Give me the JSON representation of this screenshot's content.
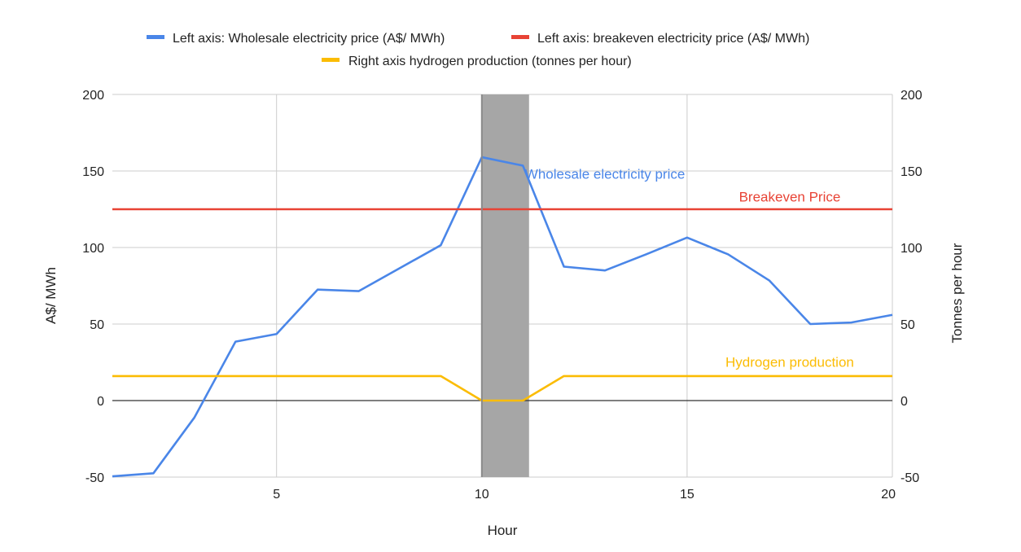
{
  "chart_data": {
    "type": "line",
    "title": "",
    "xlabel": "Hour",
    "ylabel_left": "A$/ MWh",
    "ylabel_right": "Tonnes per hour",
    "xlim": [
      1,
      20
    ],
    "ylim_left": [
      -50,
      200
    ],
    "ylim_right": [
      -50,
      200
    ],
    "x_ticks": [
      5,
      10,
      15,
      20
    ],
    "y_ticks_left": [
      -50,
      0,
      50,
      100,
      150,
      200
    ],
    "y_ticks_right": [
      -50,
      0,
      50,
      100,
      150,
      200
    ],
    "grid": true,
    "legend_position": "top",
    "shaded_region": {
      "x_start": 10,
      "x_end": 11.15,
      "color": "#a6a6a6"
    },
    "series": [
      {
        "name": "Left axis: Wholesale electricity price (A$/ MWh)",
        "axis": "left",
        "color": "#4a86e8",
        "x": [
          1,
          2,
          3,
          4,
          5,
          6,
          7,
          8,
          9,
          10,
          11,
          12,
          13,
          14,
          15,
          16,
          17,
          18,
          19,
          20
        ],
        "values": [
          -49.5,
          -47.5,
          -11,
          38.5,
          43.5,
          72.5,
          71.5,
          86.5,
          101.5,
          159,
          153.5,
          87.5,
          85,
          95.5,
          106.5,
          95.5,
          78.5,
          50,
          51,
          56
        ]
      },
      {
        "name": "Left axis: breakeven electricity price (A$/ MWh)",
        "axis": "left",
        "color": "#e84335",
        "x": [
          1,
          20
        ],
        "values": [
          125,
          125
        ]
      },
      {
        "name": "Right axis hydrogen production (tonnes per hour)",
        "axis": "right",
        "color": "#fbbc04",
        "x": [
          1,
          9,
          10,
          11,
          12,
          20
        ],
        "values": [
          16,
          16,
          0,
          0,
          16,
          16
        ]
      }
    ],
    "annotations": [
      {
        "text": "Wholesale electricity price",
        "color": "#4a86e8",
        "x": 13,
        "y": 145
      },
      {
        "text": "Breakeven Price",
        "color": "#e84335",
        "x": 17.5,
        "y": 130
      },
      {
        "text": "Hydrogen production",
        "color": "#fbbc04",
        "x": 17.5,
        "y": 22
      }
    ]
  }
}
